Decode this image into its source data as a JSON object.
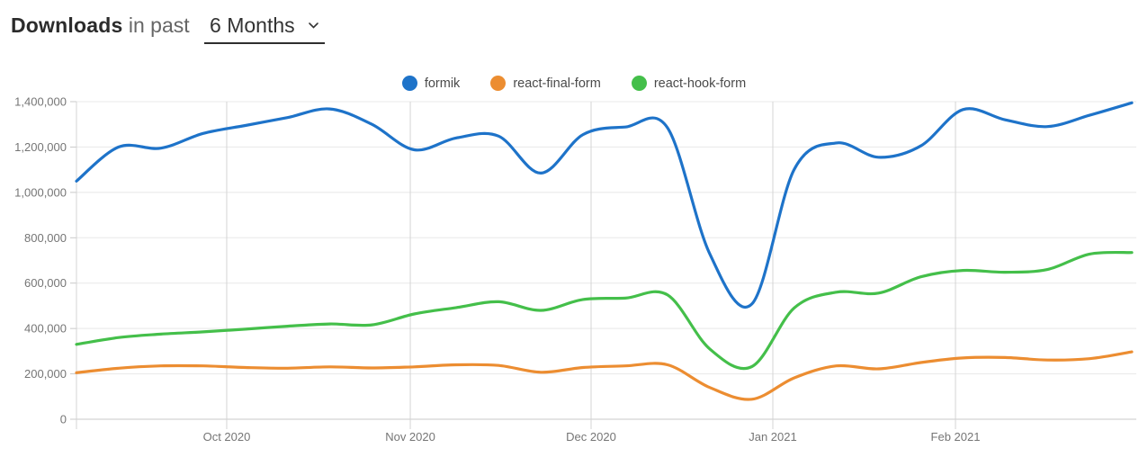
{
  "header": {
    "title_bold": "Downloads",
    "title_rest": "in past",
    "range_selector": {
      "value": "6 Months"
    }
  },
  "chart_data": {
    "type": "line",
    "title": "Downloads in past 6 Months",
    "xlabel": "",
    "ylabel": "",
    "grid": true,
    "legend_position": "top-center",
    "ylim": [
      0,
      1400000
    ],
    "y_tick_values": [
      0,
      200000,
      400000,
      600000,
      800000,
      1000000,
      1200000,
      1400000
    ],
    "y_tick_labels": [
      "0",
      "200,000",
      "400,000",
      "600,000",
      "800,000",
      "1,000,000",
      "1,200,000",
      "1,400,000"
    ],
    "x_tick_labels": [
      "Oct 2020",
      "Nov 2020",
      "Dec 2020",
      "Jan 2021",
      "Feb 2021"
    ],
    "x_tick_positions": [
      3.559,
      7.908,
      12.191,
      16.496,
      20.823
    ],
    "x_unit": "week",
    "x_range_note": "26 weekly points, early Sep 2020 to early Mar 2021",
    "series": [
      {
        "name": "formik",
        "color": "#1e73c9",
        "values": [
          1050000,
          1200000,
          1195000,
          1260000,
          1295000,
          1330000,
          1368000,
          1300000,
          1188000,
          1240000,
          1248000,
          1085000,
          1255000,
          1288000,
          1285000,
          730000,
          508000,
          1100000,
          1218000,
          1155000,
          1205000,
          1365000,
          1320000,
          1290000,
          1340000,
          1395000
        ]
      },
      {
        "name": "react-final-form",
        "color": "#ec8d31",
        "values": [
          205000,
          225000,
          235000,
          235000,
          228000,
          225000,
          231000,
          226000,
          231000,
          240000,
          237000,
          207000,
          228000,
          235000,
          240000,
          140000,
          88000,
          182000,
          235000,
          222000,
          250000,
          270000,
          272000,
          261000,
          267000,
          297000
        ]
      },
      {
        "name": "react-hook-form",
        "color": "#44bf4a",
        "values": [
          330000,
          360000,
          375000,
          385000,
          397000,
          410000,
          420000,
          416000,
          464000,
          492000,
          518000,
          480000,
          528000,
          534000,
          548000,
          310000,
          232000,
          490000,
          560000,
          556000,
          628000,
          656000,
          648000,
          660000,
          728000,
          735000
        ]
      }
    ]
  },
  "colors": {
    "grid_horizontal": "#e8e8e8",
    "grid_vertical": "#d4d4d4",
    "axis_line": "#c9c9c9",
    "tick_label": "#757575"
  }
}
